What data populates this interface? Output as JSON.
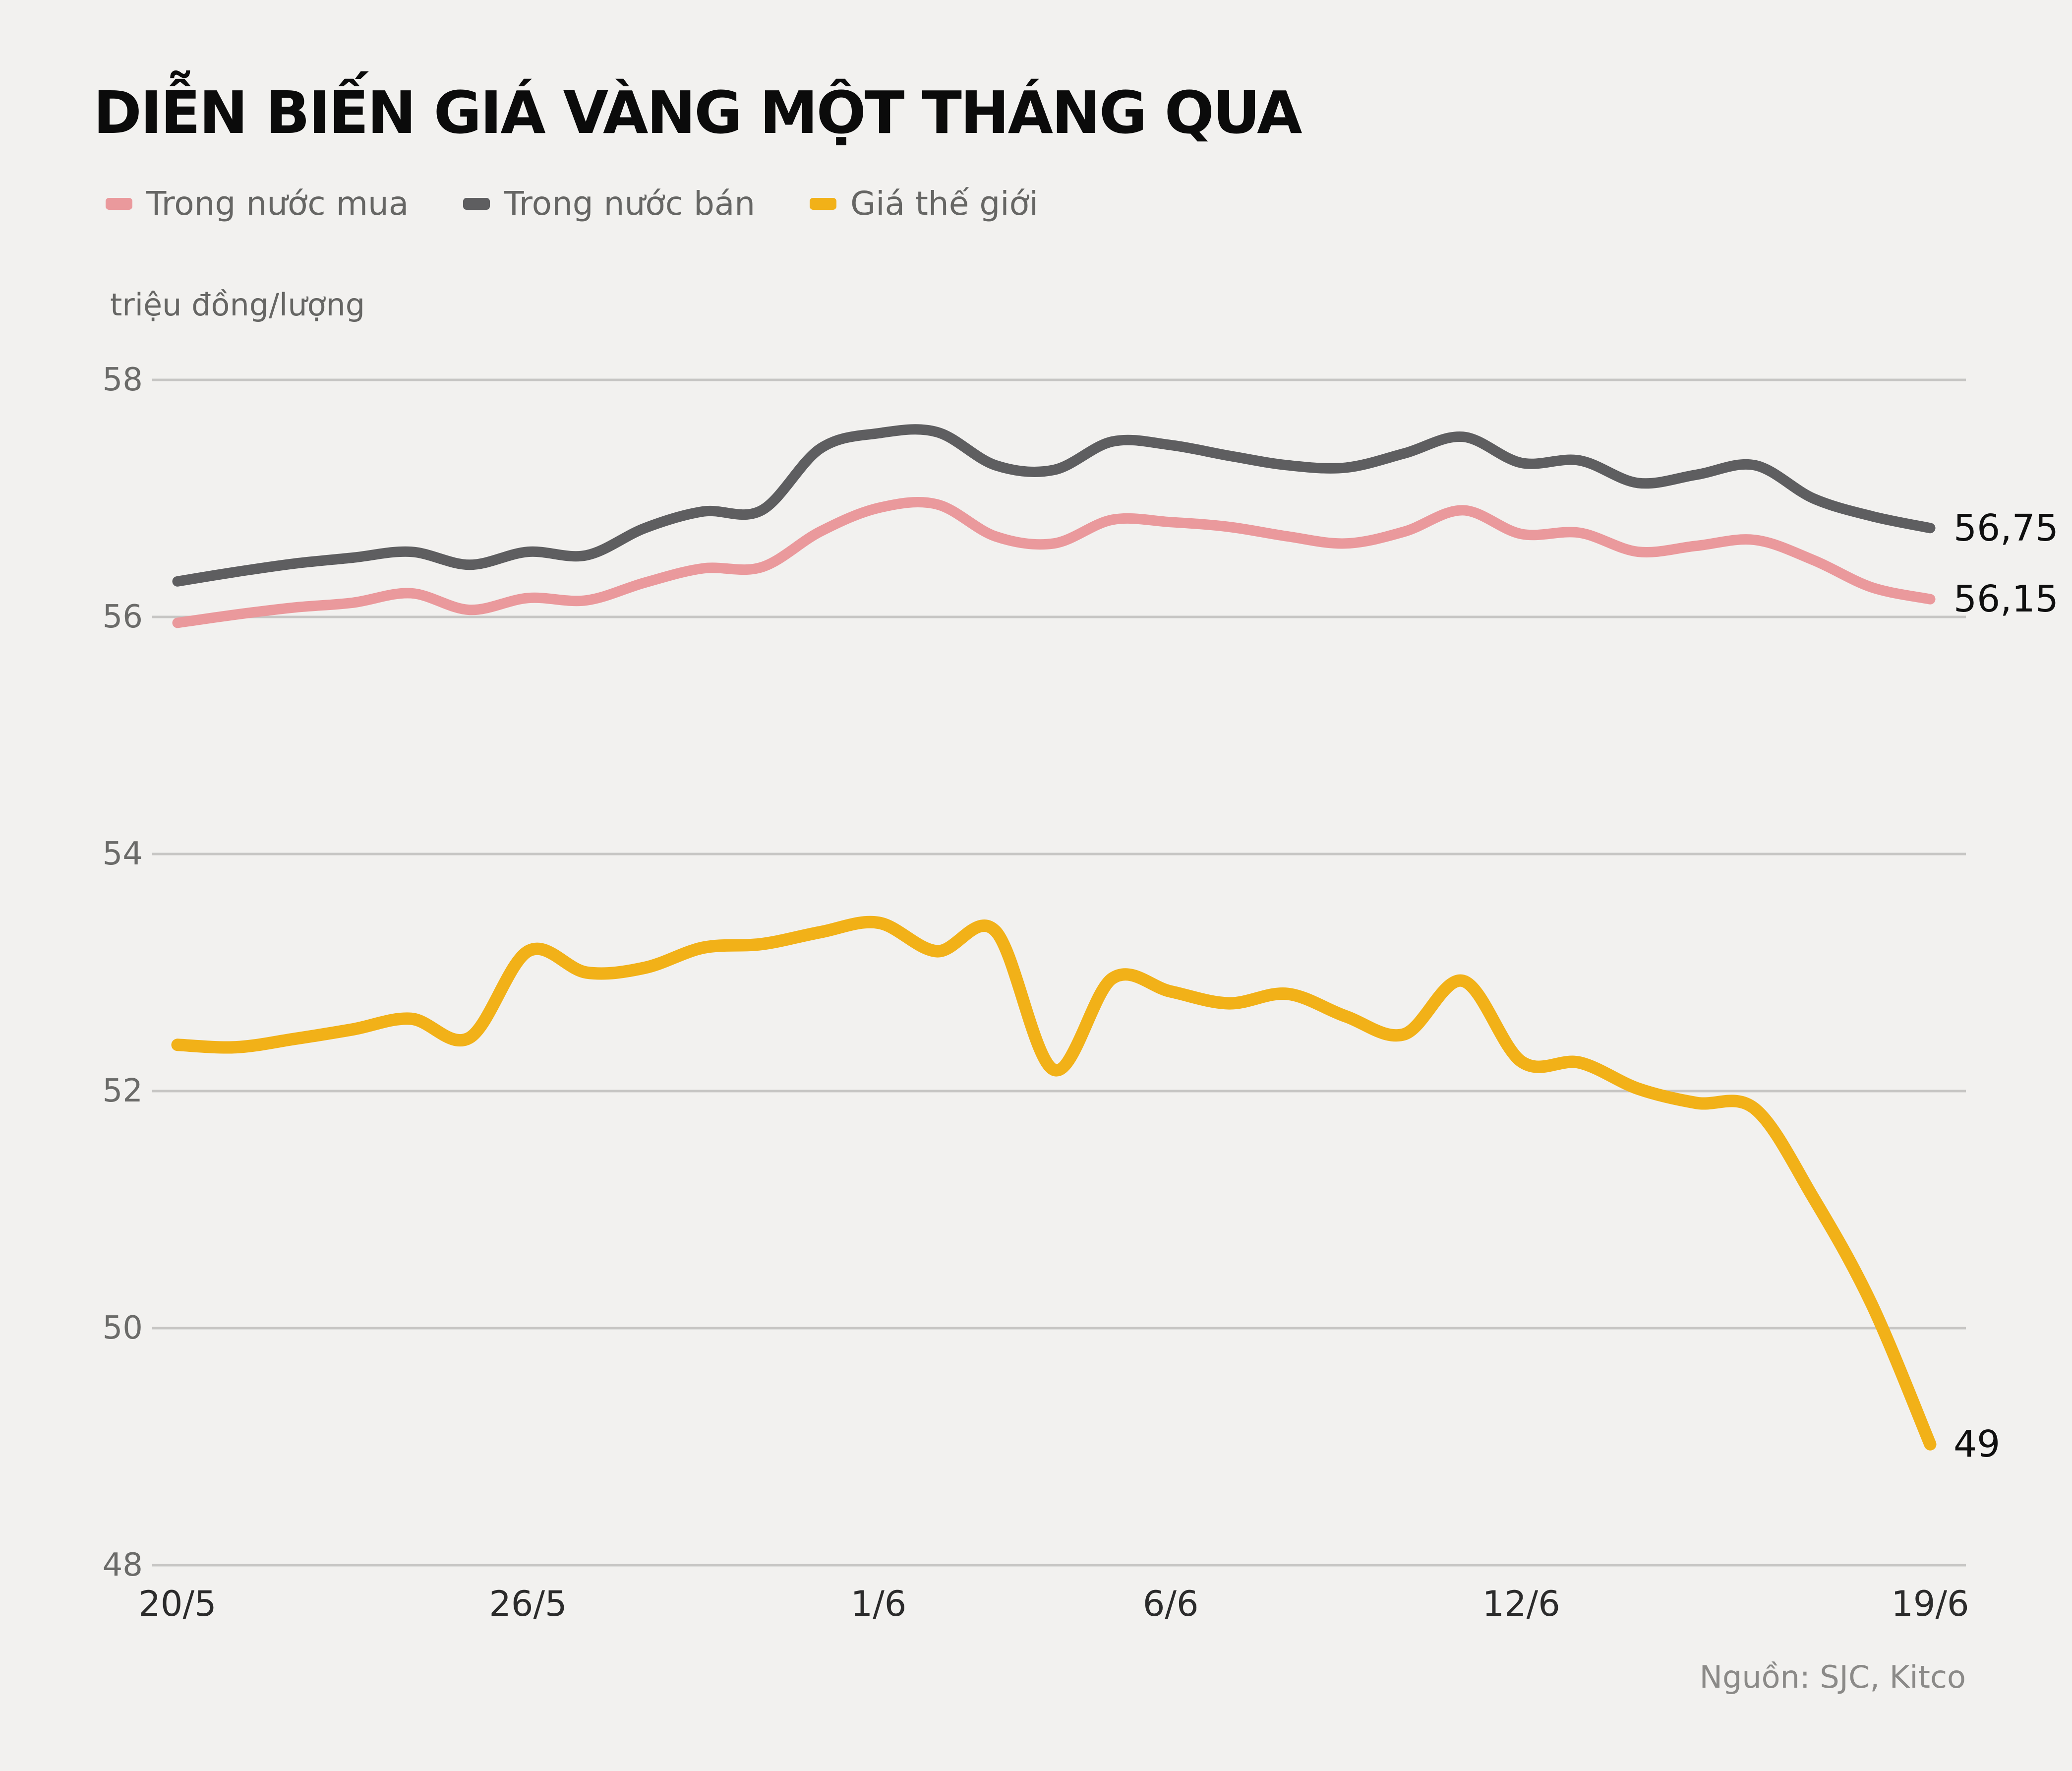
{
  "title": "DIỄN BIẾN GIÁ VÀNG MỘT THÁNG QUA",
  "unit_label": "triệu đồng/lượng",
  "source_note": "Nguồn: SJC, Kitco",
  "colors": {
    "background": "#f2f1ef",
    "grid": "#c7c6c4",
    "title_text": "#0b0b0b",
    "axis_text": "#6b6b69",
    "x_tick_text": "#2b2b2b",
    "end_label_text": "#0f0f0f",
    "legend_text": "#666664",
    "source_text": "#8b8a88"
  },
  "legend": {
    "items": [
      {
        "label": "Trong nước mua",
        "color": "#ea999c"
      },
      {
        "label": "Trong nước bán",
        "color": "#5e5e60"
      },
      {
        "label": "Giá thế giới",
        "color": "#f2b118"
      }
    ]
  },
  "chart_data": {
    "type": "line",
    "title": "DIỄN BIẾN GIÁ VÀNG MỘT THÁNG QUA",
    "ylabel": "triệu đồng/lượng",
    "grid": "horizontal-only",
    "legend_position": "top-left",
    "y_ticks": [
      58,
      56,
      54,
      52,
      50,
      48
    ],
    "y_range": [
      48,
      58
    ],
    "x_range_days": [
      0,
      30
    ],
    "x_ticks": [
      {
        "label": "20/5",
        "day": 0
      },
      {
        "label": "26/5",
        "day": 6
      },
      {
        "label": "1/6",
        "day": 12
      },
      {
        "label": "6/6",
        "day": 17
      },
      {
        "label": "12/6",
        "day": 23
      },
      {
        "label": "19/6",
        "day": 30
      }
    ],
    "series": [
      {
        "name": "Trong nước mua",
        "color": "#ea999c",
        "end_label": "56,15",
        "values": [
          55.95,
          56.02,
          56.08,
          56.12,
          56.2,
          56.06,
          56.16,
          56.14,
          56.29,
          56.41,
          56.42,
          56.72,
          56.92,
          56.95,
          56.68,
          56.62,
          56.82,
          56.8,
          56.76,
          56.68,
          56.62,
          56.72,
          56.9,
          56.7,
          56.71,
          56.55,
          56.6,
          56.65,
          56.48,
          56.25,
          56.15
        ]
      },
      {
        "name": "Trong nước bán",
        "color": "#5e5e60",
        "end_label": "56,75",
        "values": [
          56.3,
          56.38,
          56.45,
          56.5,
          56.55,
          56.44,
          56.55,
          56.52,
          56.75,
          56.89,
          56.9,
          57.42,
          57.55,
          57.56,
          57.28,
          57.24,
          57.48,
          57.45,
          57.36,
          57.28,
          57.26,
          57.38,
          57.52,
          57.3,
          57.32,
          57.13,
          57.2,
          57.28,
          57.0,
          56.85,
          56.75
        ]
      },
      {
        "name": "Giá thế giới",
        "color": "#f2b118",
        "end_label": "49",
        "values": [
          52.39,
          52.37,
          52.44,
          52.52,
          52.61,
          52.45,
          53.18,
          53.0,
          53.04,
          53.21,
          53.24,
          53.34,
          53.42,
          53.18,
          53.35,
          52.18,
          52.95,
          52.84,
          52.74,
          52.82,
          52.63,
          52.48,
          52.93,
          52.25,
          52.24,
          52.02,
          51.9,
          51.85,
          51.1,
          50.2,
          49.02
        ]
      }
    ]
  }
}
